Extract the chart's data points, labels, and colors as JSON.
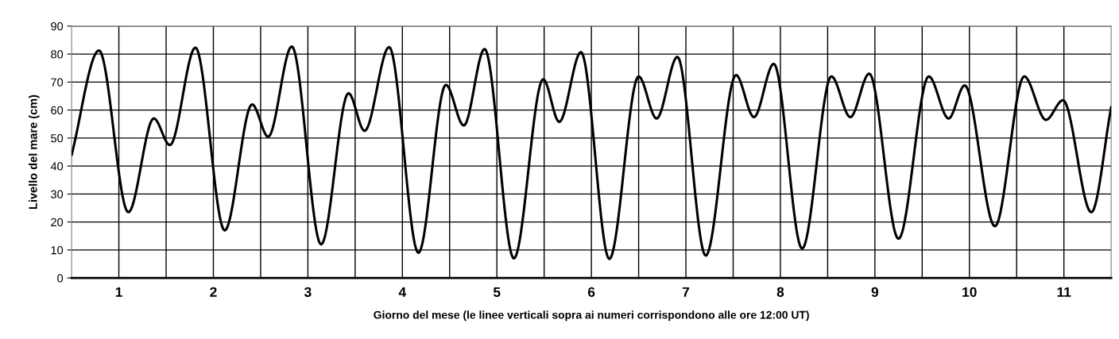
{
  "chart_data": {
    "type": "line",
    "xlabel": "Giorno del mese (le linee verticali sopra ai numeri corrispondono alle ore 12:00 UT)",
    "ylabel": "Livello del mare (cm)",
    "x": [
      0.5,
      0.79,
      1.1,
      1.37,
      1.54,
      1.81,
      2.12,
      2.41,
      2.58,
      2.83,
      3.14,
      3.43,
      3.6,
      3.86,
      4.17,
      4.46,
      4.65,
      4.87,
      5.18,
      5.49,
      5.66,
      5.89,
      6.19,
      6.5,
      6.69,
      6.91,
      7.21,
      7.53,
      7.72,
      7.93,
      8.23,
      8.54,
      8.74,
      8.94,
      9.25,
      9.57,
      9.78,
      9.95,
      10.27,
      10.58,
      10.81,
      10.99,
      11.29,
      11.5
    ],
    "series": [
      {
        "color": "#000000",
        "values": [
          44,
          81.3,
          23.5,
          57,
          47.5,
          82.3,
          17,
          62,
          50.5,
          82.7,
          12,
          66,
          52.6,
          82.5,
          9,
          69,
          54.5,
          81.8,
          7,
          71,
          55.8,
          80.7,
          6.8,
          72,
          57,
          79,
          8,
          72.5,
          57.5,
          76.5,
          10.5,
          72,
          57.5,
          73,
          14,
          72,
          57,
          68.8,
          18.5,
          72,
          56.5,
          63.5,
          23.5,
          61
        ]
      }
    ],
    "xlim": [
      0.5,
      11.5
    ],
    "xticks": [
      1,
      {
        "value": 1.5,
        "label": null
      },
      2,
      {
        "value": 2.5,
        "label": null
      },
      3,
      {
        "value": 3.5,
        "label": null
      },
      4,
      {
        "value": 4.5,
        "label": null
      },
      5,
      {
        "value": 5.5,
        "label": null
      },
      6,
      {
        "value": 6.5,
        "label": null
      },
      7,
      {
        "value": 7.5,
        "label": null
      },
      8,
      {
        "value": 8.5,
        "label": null
      },
      9,
      {
        "value": 9.5,
        "label": null
      },
      10,
      {
        "value": 10.5,
        "label": null
      },
      11
    ],
    "ylim": [
      0,
      90
    ],
    "yticks": [
      0,
      10,
      20,
      30,
      40,
      50,
      60,
      70,
      80,
      90
    ],
    "grid": true,
    "marker": "none",
    "line_style": "solid"
  }
}
